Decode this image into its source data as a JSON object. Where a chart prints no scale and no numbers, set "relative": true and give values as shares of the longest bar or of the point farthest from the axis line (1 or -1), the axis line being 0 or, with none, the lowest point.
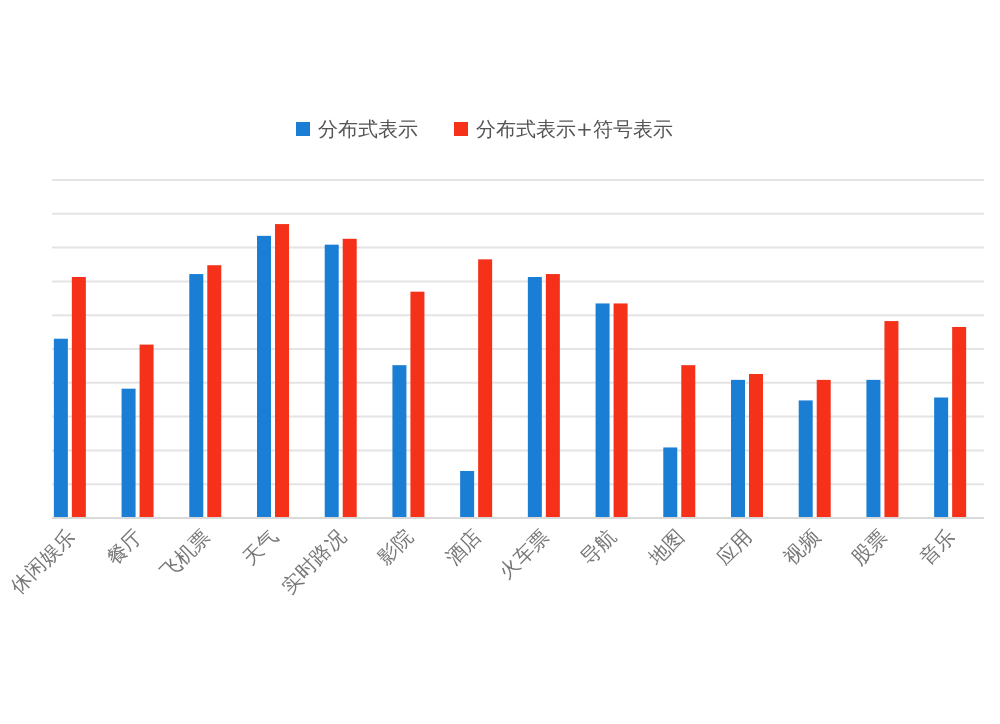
{
  "chart_data": {
    "type": "bar",
    "relative": true,
    "grid": "y",
    "legend": "top",
    "categories": [
      "休闲娱乐",
      "餐厅",
      "飞机票",
      "天气",
      "实时路况",
      "影院",
      "酒店",
      "火车票",
      "导航",
      "地图",
      "应用",
      "视频",
      "股票",
      "音乐"
    ],
    "series": [
      {
        "name": "分布式表示",
        "color": "#1a7fd4",
        "values": [
          0.61,
          0.44,
          0.83,
          0.96,
          0.93,
          0.52,
          0.16,
          0.82,
          0.73,
          0.24,
          0.47,
          0.4,
          0.47,
          0.41
        ]
      },
      {
        "name": "分布式表示+符号表示",
        "color": "#f5311a",
        "values": [
          0.82,
          0.59,
          0.86,
          1,
          0.95,
          0.77,
          0.88,
          0.83,
          0.73,
          0.52,
          0.49,
          0.47,
          0.67,
          0.65
        ]
      }
    ]
  }
}
